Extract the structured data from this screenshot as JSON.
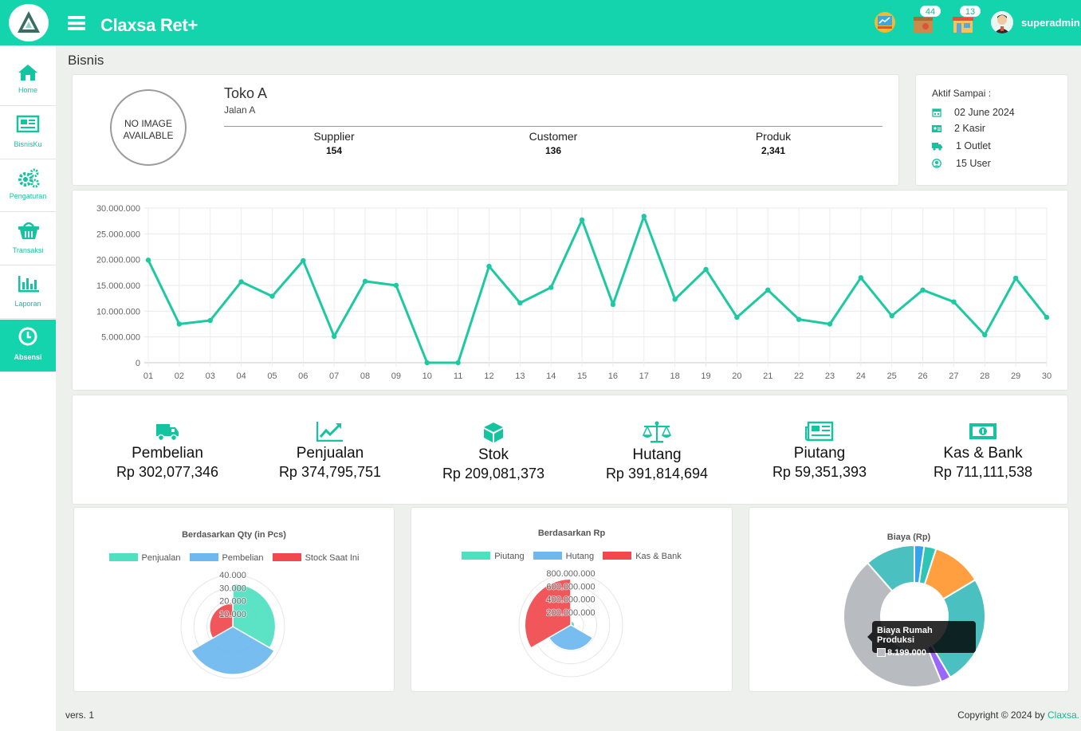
{
  "header": {
    "app_title": "Claxsa Ret+",
    "notifications": [
      {
        "icon": "sales-chart-icon",
        "badge": ""
      },
      {
        "icon": "box-icon",
        "badge": "44"
      },
      {
        "icon": "store-icon",
        "badge": "13"
      }
    ],
    "user_name": "superadmin"
  },
  "sidebar": {
    "items": [
      {
        "label": "Home",
        "icon": "home-icon"
      },
      {
        "label": "BisnisKu",
        "icon": "newspaper-icon"
      },
      {
        "label": "Pengaturan",
        "icon": "gears-icon"
      },
      {
        "label": "Transaksi",
        "icon": "basket-icon"
      },
      {
        "label": "Laporan",
        "icon": "bar-chart-icon"
      },
      {
        "label": "Absensi",
        "icon": "clock-icon",
        "active": true
      }
    ]
  },
  "breadcrumb": "Bisnis",
  "business": {
    "image_placeholder_line1": "NO IMAGE",
    "image_placeholder_line2": "AVAILABLE",
    "store_name": "Toko A",
    "store_address": "Jalan A",
    "stats": [
      {
        "label": "Supplier",
        "value": "154"
      },
      {
        "label": "Customer",
        "value": "136"
      },
      {
        "label": "Produk",
        "value": "2,341"
      }
    ]
  },
  "subscription": {
    "title": "Aktif Sampai :",
    "rows": [
      {
        "icon": "calendar-icon",
        "text": "02 June 2024"
      },
      {
        "icon": "id-card-icon",
        "text": "2 Kasir"
      },
      {
        "icon": "truck-icon",
        "text": "1 Outlet"
      },
      {
        "icon": "user-circle-icon",
        "text": "15 User"
      }
    ]
  },
  "colors": {
    "brand": "#14d4ad",
    "line": "#1cc9a0",
    "teal": "#4fe0c0",
    "blue": "#6db8ef",
    "red": "#f0484e"
  },
  "chart_data": [
    {
      "type": "line",
      "title": "",
      "x": [
        "01",
        "02",
        "03",
        "04",
        "05",
        "06",
        "07",
        "08",
        "09",
        "10",
        "11",
        "12",
        "13",
        "14",
        "15",
        "16",
        "17",
        "18",
        "19",
        "20",
        "21",
        "22",
        "23",
        "24",
        "25",
        "26",
        "27",
        "28",
        "29",
        "30"
      ],
      "y_tick_labels": [
        "0",
        "5.000.000",
        "10.000.000",
        "15.000.000",
        "20.000.000",
        "25.000.000",
        "30.000.000"
      ],
      "series": [
        {
          "values": [
            19900000,
            7500000,
            8200000,
            15700000,
            12900000,
            19800000,
            5100000,
            15800000,
            15000000,
            0,
            0,
            18700000,
            11600000,
            14600000,
            27700000,
            11300000,
            28400000,
            12300000,
            18100000,
            8800000,
            14100000,
            8400000,
            7500000,
            16500000,
            9100000,
            14100000,
            11800000,
            5400000,
            16400000,
            8800000
          ]
        }
      ],
      "ylim": [
        0,
        30000000
      ],
      "grid": true
    },
    {
      "type": "polar-area",
      "title": "Berdasarkan Qty (in Pcs)",
      "categories": [
        "Penjualan",
        "Pembelian",
        "Stock Saat Ini"
      ],
      "values": [
        33000,
        37000,
        18000
      ],
      "r_tick_labels": [
        "10.000",
        "20.000",
        "30.000",
        "40.000"
      ],
      "rlim": [
        0,
        40000
      ],
      "legend": "top"
    },
    {
      "type": "polar-area",
      "title": "Berdasarkan Rp",
      "categories": [
        "Piutang",
        "Hutang",
        "Kas & Bank"
      ],
      "values": [
        59351393,
        391814694,
        711111538
      ],
      "r_tick_labels": [
        "200.000.000",
        "400.000.000",
        "600.000.000",
        "800.000.000"
      ],
      "rlim": [
        0,
        800000000
      ],
      "legend": "top"
    },
    {
      "type": "pie",
      "title": "Biaya (Rp)",
      "slices": [
        {
          "value": 410000,
          "color": "#36a2eb"
        },
        {
          "value": 500000,
          "color": "#2ec4b6"
        },
        {
          "value": 2100000,
          "color": "#ff9f40"
        },
        {
          "value": 4600000,
          "color": "#4bc0c0"
        },
        {
          "value": 410000,
          "color": "#9966ff"
        },
        {
          "value": 8199000,
          "color": "#b8bbc0"
        },
        {
          "value": 2100000,
          "color": "#4bc0c0"
        }
      ],
      "tooltip": {
        "label": "Biaya Rumah Produksi",
        "value": "8.199.000"
      }
    }
  ],
  "summary": [
    {
      "label": "Pembelian",
      "value": "Rp 302,077,346",
      "icon": "truck-icon"
    },
    {
      "label": "Penjualan",
      "value": "Rp 374,795,751",
      "icon": "trend-chart-icon"
    },
    {
      "label": "Stok",
      "value": "Rp 209,081,373",
      "icon": "cube-icon"
    },
    {
      "label": "Hutang",
      "value": "Rp 391,814,694",
      "icon": "scale-icon"
    },
    {
      "label": "Piutang",
      "value": "Rp 59,351,393",
      "icon": "newspaper-icon"
    },
    {
      "label": "Kas & Bank",
      "value": "Rp 711,111,538",
      "icon": "money-icon"
    }
  ],
  "footer": {
    "version": "vers. 1",
    "copyright": "Copyright © 2024 by",
    "brand": "Claxsa."
  }
}
